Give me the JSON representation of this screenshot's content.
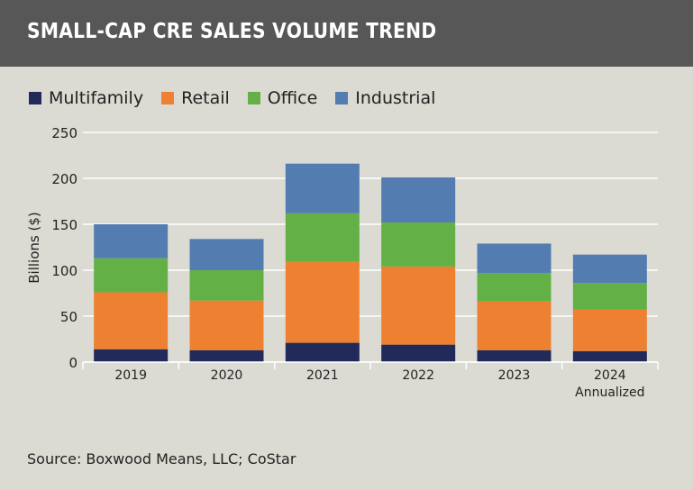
{
  "header": {
    "title": "SMALL-CAP CRE SALES VOLUME TREND"
  },
  "source": "Source: Boxwood Means, LLC; CoStar",
  "chart_data": {
    "type": "bar",
    "stacked": true,
    "title": "SMALL-CAP CRE SALES VOLUME TREND",
    "ylabel": "Billions ($)",
    "xlabel": "",
    "ylim": [
      0,
      250
    ],
    "yticks": [
      0,
      50,
      100,
      150,
      200,
      250
    ],
    "grid": true,
    "legend_placement": "top-left",
    "categories": [
      "2019",
      "2020",
      "2021",
      "2022",
      "2023",
      "2024"
    ],
    "category_sublabels": [
      "",
      "",
      "",
      "",
      "",
      "Annualized"
    ],
    "series": [
      {
        "name": "Multifamily",
        "color": "#222a5a",
        "values": [
          14,
          13,
          21,
          19,
          13,
          12
        ]
      },
      {
        "name": "Retail",
        "color": "#ee8131",
        "values": [
          62,
          54,
          88,
          85,
          53,
          45
        ]
      },
      {
        "name": "Office",
        "color": "#63b146",
        "values": [
          37,
          33,
          53,
          48,
          31,
          29
        ]
      },
      {
        "name": "Industrial",
        "color": "#537db1",
        "values": [
          37,
          34,
          54,
          49,
          32,
          31
        ]
      }
    ]
  }
}
